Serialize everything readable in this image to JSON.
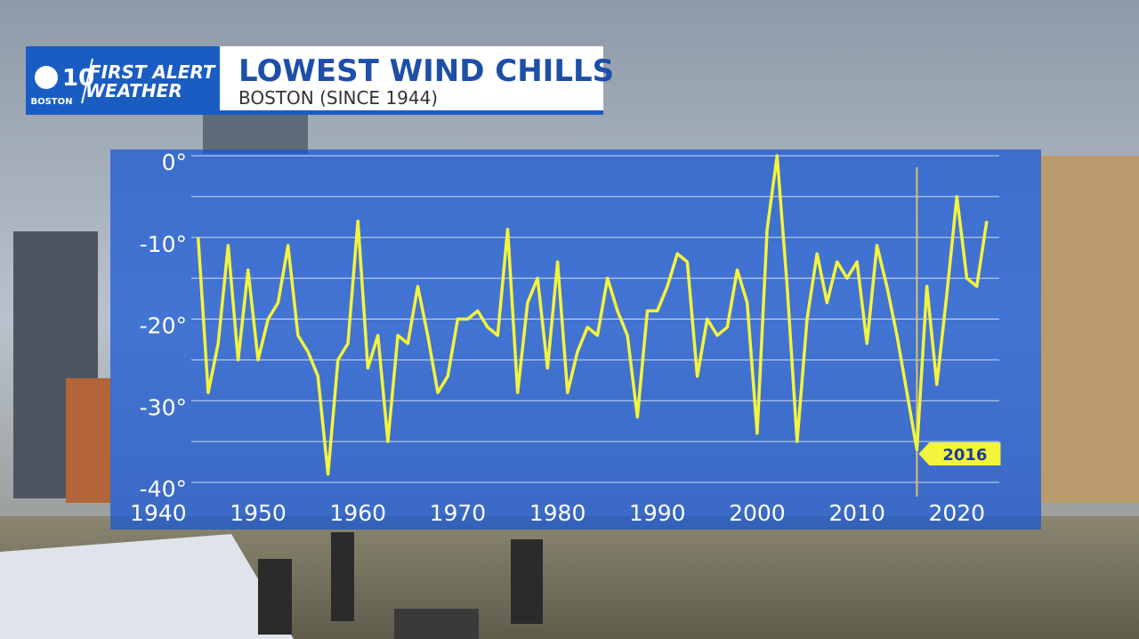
{
  "branding": {
    "channel": "10",
    "city": "BOSTON",
    "line1": "FIRST ALERT",
    "line2": "WEATHER"
  },
  "chart_data": {
    "type": "line",
    "title": "LOWEST WIND CHILLS",
    "subtitle": "BOSTON (SINCE 1944)",
    "x": [
      1944,
      1945,
      1946,
      1947,
      1948,
      1949,
      1950,
      1951,
      1952,
      1953,
      1954,
      1955,
      1956,
      1957,
      1958,
      1959,
      1960,
      1961,
      1962,
      1963,
      1964,
      1965,
      1966,
      1967,
      1968,
      1969,
      1970,
      1971,
      1972,
      1973,
      1974,
      1975,
      1976,
      1977,
      1978,
      1979,
      1980,
      1981,
      1982,
      1983,
      1984,
      1985,
      1986,
      1987,
      1988,
      1989,
      1990,
      1991,
      1992,
      1993,
      1994,
      1995,
      1996,
      1997,
      1998,
      1999,
      2000,
      2001,
      2002,
      2003,
      2004,
      2005,
      2006,
      2007,
      2008,
      2009,
      2010,
      2011,
      2012,
      2013,
      2014,
      2015,
      2016,
      2017,
      2018,
      2019,
      2020,
      2021,
      2022,
      2023
    ],
    "values": [
      -10,
      -29,
      -23,
      -11,
      -25,
      -14,
      -25,
      -20,
      -18,
      -11,
      -22,
      -24,
      -27,
      -39,
      -25,
      -23,
      -8,
      -26,
      -22,
      -35,
      -22,
      -23,
      -16,
      -22,
      -29,
      -27,
      -20,
      -20,
      -19,
      -21,
      -22,
      -9,
      -29,
      -18,
      -15,
      -26,
      -13,
      -29,
      -24,
      -21,
      -22,
      -15,
      -19,
      -22,
      -32,
      -19,
      -19,
      -16,
      -12,
      -13,
      -27,
      -20,
      -22,
      -21,
      -14,
      -18,
      -34,
      -9,
      0,
      -16,
      -35,
      -20,
      -12,
      -18,
      -13,
      -15,
      -13,
      -23,
      -11,
      -16,
      -22,
      -29,
      -36,
      -16,
      -28,
      -17,
      -5,
      -15,
      -16,
      -8
    ],
    "color": "#f4f43c",
    "xlim": [
      1936,
      2028
    ],
    "xticks": [
      1940,
      1950,
      1960,
      1970,
      1980,
      1990,
      2000,
      2010,
      2020
    ],
    "ylim": [
      -40,
      0
    ],
    "yticks": [
      {
        "value": 0,
        "label": "0°"
      },
      {
        "value": -10,
        "label": "-10°"
      },
      {
        "value": -20,
        "label": "-20°"
      },
      {
        "value": -30,
        "label": "-30°"
      },
      {
        "value": -40,
        "label": "-40°"
      }
    ],
    "yminor": [
      -5,
      -15,
      -25,
      -35
    ],
    "grid": true,
    "highlight_x": 2016
  }
}
